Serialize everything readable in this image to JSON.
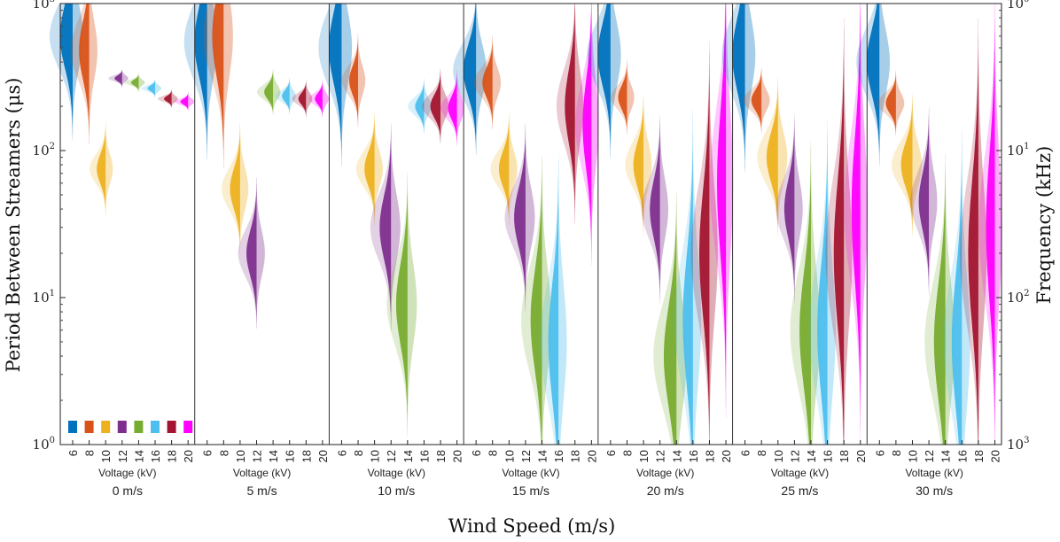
{
  "chart_data": {
    "type": "violin",
    "title": "",
    "xlabel": "Wind Speed (m/s)",
    "ylabel": "Period Between Streamers (μs)",
    "y2label": "Frequency (kHz)",
    "yscale": "log",
    "ylim": [
      1,
      1000
    ],
    "y_ticks": [
      {
        "value": 1,
        "base": "10",
        "exp": "0"
      },
      {
        "value": 10,
        "base": "10",
        "exp": "1"
      },
      {
        "value": 100,
        "base": "10",
        "exp": "2"
      },
      {
        "value": 1000,
        "base": "10",
        "exp": "3"
      }
    ],
    "y2_ticks": [
      {
        "value": 1,
        "base": "10",
        "exp": "3"
      },
      {
        "value": 10,
        "base": "10",
        "exp": "2"
      },
      {
        "value": 100,
        "base": "10",
        "exp": "1"
      },
      {
        "value": 1000,
        "base": "10",
        "exp": "0"
      }
    ],
    "panel_xlabel": "Voltage (kV)",
    "voltages": [
      "6",
      "8",
      "10",
      "12",
      "14",
      "16",
      "18",
      "20"
    ],
    "colors": [
      "#0072BD",
      "#D95319",
      "#EDB120",
      "#7E2F8E",
      "#77AC30",
      "#4DBEEE",
      "#A2142F",
      "#FF00FF"
    ],
    "panels": [
      {
        "wind": "0 m/s",
        "series": [
          {
            "voltage": "6",
            "center": 600,
            "spread": 0.22,
            "width": 1.0
          },
          {
            "voltage": "8",
            "center": 480,
            "spread": 0.2,
            "width": 0.8
          },
          {
            "voltage": "10",
            "center": 75,
            "spread": 0.1,
            "width": 0.7
          },
          {
            "voltage": "12",
            "center": 310,
            "spread": 0.02,
            "width": 0.6
          },
          {
            "voltage": "14",
            "center": 290,
            "spread": 0.02,
            "width": 0.6
          },
          {
            "voltage": "16",
            "center": 265,
            "spread": 0.02,
            "width": 0.6
          },
          {
            "voltage": "18",
            "center": 225,
            "spread": 0.02,
            "width": 0.6
          },
          {
            "voltage": "20",
            "center": 215,
            "spread": 0.02,
            "width": 0.6
          }
        ]
      },
      {
        "wind": "5 m/s",
        "series": [
          {
            "voltage": "6",
            "center": 550,
            "spread": 0.25,
            "width": 1.0
          },
          {
            "voltage": "8",
            "center": 600,
            "spread": 0.28,
            "width": 0.9
          },
          {
            "voltage": "10",
            "center": 55,
            "spread": 0.14,
            "width": 0.8
          },
          {
            "voltage": "12",
            "center": 20,
            "spread": 0.16,
            "width": 0.8
          },
          {
            "voltage": "14",
            "center": 250,
            "spread": 0.05,
            "width": 0.7
          },
          {
            "voltage": "16",
            "center": 235,
            "spread": 0.04,
            "width": 0.6
          },
          {
            "voltage": "18",
            "center": 225,
            "spread": 0.04,
            "width": 0.6
          },
          {
            "voltage": "20",
            "center": 225,
            "spread": 0.04,
            "width": 0.6
          }
        ]
      },
      {
        "wind": "10 m/s",
        "series": [
          {
            "voltage": "6",
            "center": 500,
            "spread": 0.25,
            "width": 1.0
          },
          {
            "voltage": "8",
            "center": 300,
            "spread": 0.1,
            "width": 0.7
          },
          {
            "voltage": "10",
            "center": 75,
            "spread": 0.12,
            "width": 0.8
          },
          {
            "voltage": "12",
            "center": 30,
            "spread": 0.22,
            "width": 0.9
          },
          {
            "voltage": "14",
            "center": 9,
            "spread": 0.28,
            "width": 0.9
          },
          {
            "voltage": "16",
            "center": 200,
            "spread": 0.06,
            "width": 0.7
          },
          {
            "voltage": "18",
            "center": 200,
            "spread": 0.08,
            "width": 0.8
          },
          {
            "voltage": "20",
            "center": 195,
            "spread": 0.08,
            "width": 0.7
          }
        ]
      },
      {
        "wind": "15 m/s",
        "series": [
          {
            "voltage": "6",
            "center": 350,
            "spread": 0.18,
            "width": 1.0
          },
          {
            "voltage": "8",
            "center": 290,
            "spread": 0.1,
            "width": 0.8
          },
          {
            "voltage": "10",
            "center": 75,
            "spread": 0.12,
            "width": 0.8
          },
          {
            "voltage": "12",
            "center": 35,
            "spread": 0.2,
            "width": 0.9
          },
          {
            "voltage": "14",
            "center": 7,
            "spread": 0.35,
            "width": 0.9
          },
          {
            "voltage": "16",
            "center": 5,
            "spread": 0.4,
            "width": 0.8
          },
          {
            "voltage": "18",
            "center": 200,
            "spread": 0.25,
            "width": 0.8
          },
          {
            "voltage": "20",
            "center": 150,
            "spread": 0.3,
            "width": 0.7
          }
        ]
      },
      {
        "wind": "20 m/s",
        "series": [
          {
            "voltage": "6",
            "center": 450,
            "spread": 0.22,
            "width": 1.0
          },
          {
            "voltage": "8",
            "center": 230,
            "spread": 0.08,
            "width": 0.7
          },
          {
            "voltage": "10",
            "center": 80,
            "spread": 0.15,
            "width": 0.8
          },
          {
            "voltage": "12",
            "center": 40,
            "spread": 0.2,
            "width": 0.8
          },
          {
            "voltage": "14",
            "center": 4,
            "spread": 0.35,
            "width": 1.0
          },
          {
            "voltage": "16",
            "center": 7,
            "spread": 0.45,
            "width": 0.8
          },
          {
            "voltage": "18",
            "center": 20,
            "spread": 0.45,
            "width": 0.8
          },
          {
            "voltage": "20",
            "center": 60,
            "spread": 0.5,
            "width": 0.7
          }
        ]
      },
      {
        "wind": "25 m/s",
        "series": [
          {
            "voltage": "6",
            "center": 450,
            "spread": 0.25,
            "width": 1.0
          },
          {
            "voltage": "8",
            "center": 220,
            "spread": 0.07,
            "width": 0.8
          },
          {
            "voltage": "10",
            "center": 90,
            "spread": 0.17,
            "width": 0.9
          },
          {
            "voltage": "12",
            "center": 40,
            "spread": 0.2,
            "width": 0.8
          },
          {
            "voltage": "14",
            "center": 6,
            "spread": 0.4,
            "width": 0.9
          },
          {
            "voltage": "16",
            "center": 6,
            "spread": 0.45,
            "width": 0.8
          },
          {
            "voltage": "18",
            "center": 20,
            "spread": 0.5,
            "width": 0.8
          },
          {
            "voltage": "20",
            "center": 40,
            "spread": 0.5,
            "width": 0.7
          }
        ]
      },
      {
        "wind": "30 m/s",
        "series": [
          {
            "voltage": "6",
            "center": 400,
            "spread": 0.22,
            "width": 1.0
          },
          {
            "voltage": "8",
            "center": 210,
            "spread": 0.07,
            "width": 0.8
          },
          {
            "voltage": "10",
            "center": 80,
            "spread": 0.15,
            "width": 0.9
          },
          {
            "voltage": "12",
            "center": 45,
            "spread": 0.2,
            "width": 0.8
          },
          {
            "voltage": "14",
            "center": 5,
            "spread": 0.4,
            "width": 0.9
          },
          {
            "voltage": "16",
            "center": 5,
            "spread": 0.45,
            "width": 0.8
          },
          {
            "voltage": "18",
            "center": 20,
            "spread": 0.5,
            "width": 0.8
          },
          {
            "voltage": "20",
            "center": 30,
            "spread": 0.5,
            "width": 0.7
          }
        ]
      }
    ]
  }
}
